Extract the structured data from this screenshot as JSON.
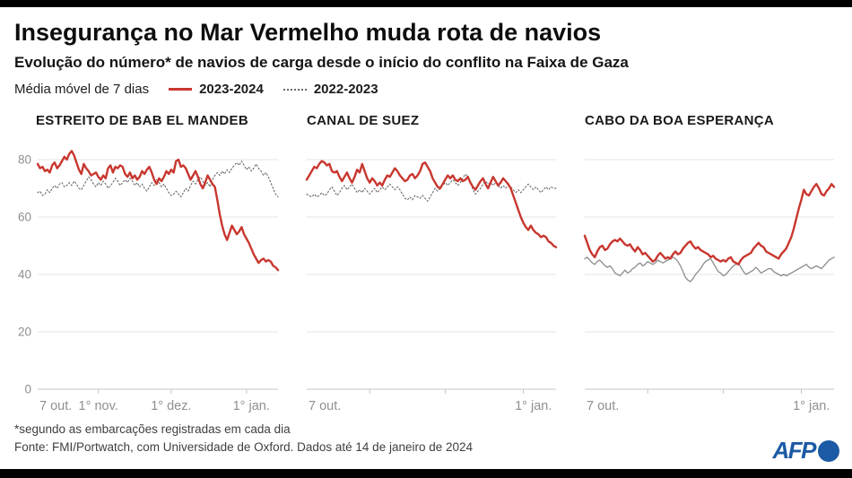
{
  "header": {
    "title": "Insegurança no Mar Vermelho muda rota de navios",
    "subtitle": "Evolução do número* de navios de carga desde o início do conflito na Faixa de Gaza",
    "legend": {
      "label": "Média móvel de 7 dias",
      "items": [
        {
          "label": "2023-2024",
          "color": "#c8372f",
          "style": "solid"
        },
        {
          "label": "2022-2023",
          "color": "#6a6a6a",
          "style": "dotted"
        }
      ]
    }
  },
  "colors": {
    "accent_red": "#c8372f",
    "gray_line": "#5a5a5a",
    "gray_line_light": "#8c8c8c",
    "gridline": "#e6e6e6",
    "axis": "#c6c6c6",
    "axis_text": "#8f8f8f",
    "afp_blue": "#1c5aa5"
  },
  "footer": {
    "note": "*segundo as embarcações registradas em cada dia",
    "source": "Fonte: FMI/Portwatch, com Universidade de Oxford. Dados até 14 de janeiro de 2024",
    "logo_text": "AFP"
  },
  "chart_data": [
    {
      "type": "line",
      "title": "ESTREITO DE BAB EL MANDEB",
      "x_unit": "days_since_7_oct_2023",
      "ylim": [
        0,
        85
      ],
      "y_ticks": [
        0,
        20,
        40,
        60,
        80
      ],
      "show_y_labels": true,
      "x_tick_days": [
        25,
        55,
        86
      ],
      "x_labels": [
        {
          "day": 0,
          "label": "7 out.",
          "anchor": "start"
        },
        {
          "day": 25,
          "label": "1° nov.",
          "anchor": "middle"
        },
        {
          "day": 55,
          "label": "1° dez.",
          "anchor": "middle"
        },
        {
          "day": 88,
          "label": "1° jan.",
          "anchor": "middle"
        }
      ],
      "series": [
        {
          "name": "2023-2024",
          "color": "#c8372f",
          "width": 2.4,
          "dash": "",
          "values": [
            78.5,
            77,
            77.5,
            76,
            76.5,
            75.5,
            78,
            79,
            77,
            78,
            79.5,
            81,
            80,
            82,
            83,
            81.5,
            79,
            76.5,
            75,
            78.5,
            77,
            76,
            74.5,
            75,
            75.5,
            74,
            73,
            74.5,
            73.5,
            77,
            78,
            75.5,
            77.5,
            77,
            78,
            77.5,
            75,
            74,
            75.5,
            73.5,
            74.5,
            73,
            74,
            76,
            75,
            76.5,
            77.5,
            75.5,
            73,
            71.5,
            73.5,
            72.5,
            74,
            76,
            75,
            76.5,
            75.5,
            79.5,
            80,
            77.5,
            78,
            77,
            75,
            73,
            74.5,
            76,
            74,
            71.5,
            70,
            72,
            74.5,
            73,
            71.5,
            70.5,
            66,
            61,
            57,
            54,
            52,
            54.5,
            57,
            55.5,
            54,
            55,
            56.5,
            54,
            52.5,
            51,
            49,
            47,
            45.5,
            44,
            45,
            45.5,
            44.5,
            45,
            44.5,
            43,
            42.5,
            41.5
          ]
        },
        {
          "name": "2022-2023",
          "color": "#5a5a5a",
          "width": 1,
          "dash": "1.6 2.4",
          "values": [
            68.5,
            69,
            67.5,
            68,
            69.5,
            68.5,
            70,
            71,
            70,
            71.5,
            72,
            70.5,
            71,
            72,
            71,
            72.5,
            71.5,
            70,
            69.5,
            71,
            72.5,
            74,
            73,
            71.5,
            70.5,
            72,
            71,
            72.5,
            71.5,
            70,
            71,
            72,
            73.5,
            72.5,
            71,
            72,
            73,
            72,
            73.5,
            72.5,
            71,
            72,
            70.5,
            71.5,
            70,
            69,
            70.5,
            72,
            71,
            73,
            72,
            70.5,
            71.5,
            70,
            68.5,
            67.5,
            68,
            69,
            68,
            67,
            68.5,
            70,
            69,
            71,
            72.5,
            71.5,
            73,
            74,
            72.5,
            71,
            72,
            70.5,
            73,
            74.5,
            75.5,
            74.5,
            76,
            75,
            76.5,
            75.5,
            77,
            78,
            79,
            78,
            79.5,
            78,
            76.5,
            77.5,
            76,
            77,
            78.5,
            77,
            76,
            74.5,
            75.5,
            74,
            72,
            70,
            68,
            67
          ]
        }
      ]
    },
    {
      "type": "line",
      "title": "CANAL DE SUEZ",
      "x_unit": "days_since_7_oct_2023",
      "ylim": [
        0,
        85
      ],
      "y_ticks": [
        0,
        20,
        40,
        60,
        80
      ],
      "show_y_labels": false,
      "x_tick_days": [
        25,
        55,
        86
      ],
      "x_labels": [
        {
          "day": 0,
          "label": "7 out.",
          "anchor": "start"
        },
        {
          "day": 90,
          "label": "1° jan.",
          "anchor": "middle"
        }
      ],
      "series": [
        {
          "name": "2023-2024",
          "color": "#c8372f",
          "width": 2.4,
          "dash": "",
          "values": [
            73,
            74.5,
            76,
            77.5,
            77,
            78.5,
            79.5,
            79,
            78,
            78.5,
            76,
            75.5,
            76,
            74,
            72.5,
            74,
            75.5,
            73.5,
            72,
            74,
            76.5,
            75.5,
            78.5,
            76,
            73.5,
            72,
            73.5,
            72.5,
            71,
            72,
            71,
            73,
            74.5,
            74,
            75.5,
            77,
            76,
            74.5,
            73.5,
            72.5,
            73,
            74.5,
            75,
            73.5,
            74.5,
            76,
            78.5,
            79,
            77.5,
            76,
            73.5,
            72,
            70.5,
            70,
            71.5,
            73,
            74.5,
            73.5,
            74.5,
            73,
            72.5,
            73.5,
            72.5,
            73,
            74,
            72,
            70.5,
            69.5,
            71,
            72.5,
            73.5,
            71.5,
            70,
            72,
            74,
            72.5,
            71,
            72,
            73.5,
            72.5,
            71.5,
            70,
            67.5,
            65,
            62.5,
            60,
            58,
            56.5,
            55.5,
            57,
            55.5,
            54.5,
            54,
            53,
            53.5,
            53,
            51.5,
            51,
            50,
            49.5
          ]
        },
        {
          "name": "2022-2023",
          "color": "#5a5a5a",
          "width": 1,
          "dash": "1.6 2.4",
          "values": [
            68,
            67.5,
            67,
            68,
            67,
            67.5,
            68.5,
            67.5,
            68,
            69.5,
            70.5,
            69,
            67.5,
            68.5,
            70,
            71,
            69.5,
            70.5,
            71.5,
            70,
            68.5,
            69.5,
            68.5,
            70,
            69,
            68,
            69,
            70,
            68.5,
            69.5,
            70.5,
            69.5,
            70.5,
            71.5,
            70.5,
            69.5,
            70.5,
            69.5,
            68,
            66.5,
            66,
            67,
            66,
            67.5,
            67,
            66.5,
            67.5,
            66.5,
            65.5,
            67,
            68.5,
            70,
            69,
            70,
            71,
            72,
            71,
            72,
            73,
            72,
            71,
            72,
            73.5,
            75,
            74,
            72,
            69.5,
            68,
            69,
            70,
            71.5,
            72.5,
            71.5,
            72,
            71,
            72,
            71,
            70,
            71,
            70,
            71,
            70.5,
            69.5,
            68.5,
            69.5,
            68.5,
            69.5,
            70.5,
            71.5,
            70.5,
            69.5,
            70.5,
            69.5,
            68.5,
            69.5,
            70.5,
            69.5,
            70.5,
            70,
            70
          ]
        }
      ]
    },
    {
      "type": "line",
      "title": "CABO DA BOA ESPERANÇA",
      "x_unit": "days_since_7_oct_2023",
      "ylim": [
        0,
        85
      ],
      "y_ticks": [
        0,
        20,
        40,
        60,
        80
      ],
      "show_y_labels": false,
      "x_tick_days": [
        25,
        55,
        86
      ],
      "x_labels": [
        {
          "day": 0,
          "label": "7 out.",
          "anchor": "start"
        },
        {
          "day": 90,
          "label": "1° jan.",
          "anchor": "middle"
        }
      ],
      "series": [
        {
          "name": "2023-2024",
          "color": "#c8372f",
          "width": 2.4,
          "dash": "",
          "values": [
            53.5,
            51,
            48.5,
            47,
            46,
            48,
            49.5,
            50,
            48.5,
            49,
            50.5,
            51.5,
            52,
            51.5,
            52.5,
            51.5,
            50.5,
            50,
            50.5,
            49,
            48,
            49.5,
            48.5,
            47,
            47.5,
            46.5,
            45.5,
            44.5,
            45,
            46.5,
            47.5,
            46.5,
            45.5,
            46,
            45.5,
            47,
            48,
            47,
            47.5,
            49,
            50,
            51,
            51.5,
            50,
            49,
            49.5,
            48.5,
            48,
            47.5,
            47,
            46,
            46.5,
            45.5,
            45,
            44.5,
            45,
            44.5,
            45.5,
            46,
            44.5,
            44,
            43.5,
            45,
            46,
            46.5,
            47,
            47.5,
            49,
            50,
            51,
            50,
            49.5,
            48,
            47.5,
            47,
            46.5,
            46,
            45.5,
            47,
            48,
            49,
            51,
            53,
            56,
            59.5,
            63,
            66,
            69.5,
            68,
            67.5,
            69,
            70.5,
            71.5,
            70,
            68,
            67.5,
            69,
            70,
            71.5,
            70.5
          ]
        },
        {
          "name": "2022-2023",
          "color": "#8c8c8c",
          "width": 1.3,
          "dash": "",
          "values": [
            45.5,
            46,
            45,
            44,
            43.5,
            44.5,
            45,
            44,
            43,
            42.5,
            43,
            42,
            40.5,
            40,
            39.5,
            40.5,
            41.5,
            40.5,
            41,
            42,
            42.5,
            43.5,
            44,
            43,
            43.5,
            44.5,
            44,
            43.5,
            44,
            45,
            44.5,
            44,
            44.5,
            45,
            45.5,
            46,
            45.5,
            44.5,
            43,
            41,
            39,
            38,
            37.5,
            38.5,
            40,
            41,
            42,
            43.5,
            44.5,
            45,
            45.5,
            44,
            42.5,
            41,
            40.5,
            39.5,
            40,
            41,
            42,
            43,
            43.5,
            44,
            42.5,
            41,
            40,
            40.5,
            41,
            41.5,
            42.5,
            41.5,
            40.5,
            41,
            41.5,
            42,
            42,
            41,
            40.5,
            40,
            39.5,
            40,
            39.5,
            40,
            40.5,
            41,
            41.5,
            42,
            42.5,
            43,
            43.5,
            42.5,
            42,
            42.5,
            43,
            42.5,
            42,
            43,
            44,
            45,
            45.5,
            46
          ]
        }
      ]
    }
  ]
}
